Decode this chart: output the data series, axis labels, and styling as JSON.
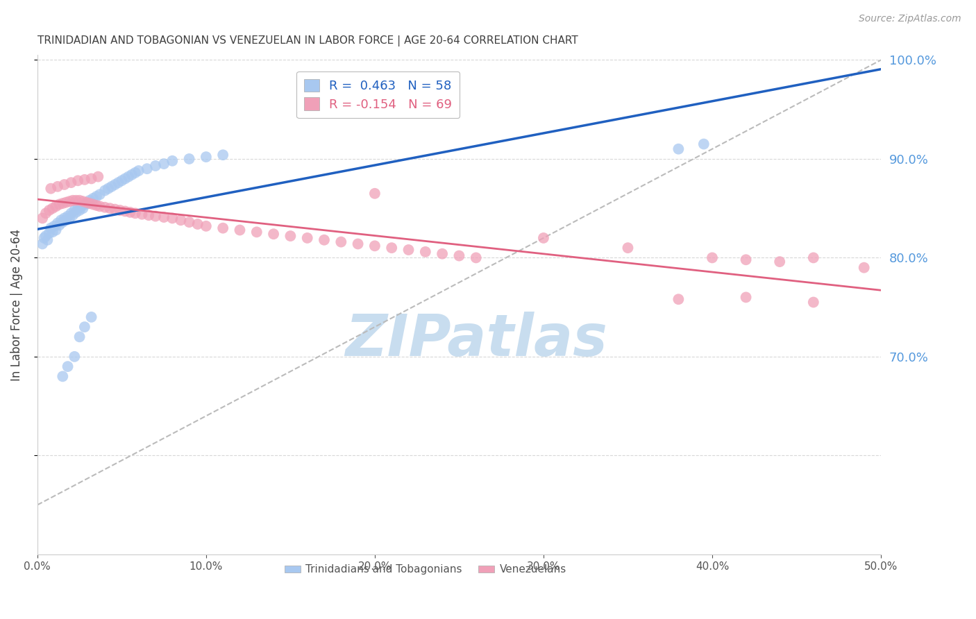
{
  "title": "TRINIDADIAN AND TOBAGONIAN VS VENEZUELAN IN LABOR FORCE | AGE 20-64 CORRELATION CHART",
  "source": "Source: ZipAtlas.com",
  "ylabel": "In Labor Force | Age 20-64",
  "xlim": [
    0.0,
    0.5
  ],
  "ylim": [
    0.5,
    1.005
  ],
  "xticks": [
    0.0,
    0.1,
    0.2,
    0.3,
    0.4,
    0.5
  ],
  "yticks_left": [
    0.6,
    0.7,
    0.8,
    0.9,
    1.0
  ],
  "yticks_right": [
    0.7,
    0.8,
    0.9,
    1.0
  ],
  "blue_R": 0.463,
  "blue_N": 58,
  "pink_R": -0.154,
  "pink_N": 69,
  "blue_color": "#A8C8F0",
  "pink_color": "#F0A0B8",
  "blue_line_color": "#2060C0",
  "pink_line_color": "#E06080",
  "grid_color": "#D8D8D8",
  "title_color": "#404040",
  "axis_label_color": "#404040",
  "right_axis_color": "#5599DD",
  "watermark_text": "ZIPatlas",
  "watermark_color": "#C8DDEF",
  "legend_labels": [
    "Trinidadians and Tobagonians",
    "Venezuelans"
  ],
  "figsize": [
    14.06,
    8.92
  ],
  "dpi": 100,
  "blue_scatter_x": [
    0.003,
    0.004,
    0.005,
    0.006,
    0.007,
    0.008,
    0.009,
    0.01,
    0.011,
    0.012,
    0.013,
    0.014,
    0.015,
    0.016,
    0.017,
    0.018,
    0.019,
    0.02,
    0.021,
    0.022,
    0.023,
    0.024,
    0.025,
    0.026,
    0.027,
    0.028,
    0.03,
    0.031,
    0.032,
    0.033,
    0.035,
    0.037,
    0.04,
    0.042,
    0.044,
    0.046,
    0.048,
    0.05,
    0.052,
    0.054,
    0.056,
    0.058,
    0.06,
    0.065,
    0.07,
    0.075,
    0.08,
    0.09,
    0.1,
    0.11,
    0.015,
    0.018,
    0.022,
    0.025,
    0.028,
    0.032,
    0.38,
    0.395
  ],
  "blue_scatter_y": [
    0.814,
    0.82,
    0.822,
    0.818,
    0.825,
    0.83,
    0.826,
    0.832,
    0.828,
    0.835,
    0.833,
    0.838,
    0.836,
    0.84,
    0.838,
    0.842,
    0.84,
    0.845,
    0.843,
    0.848,
    0.846,
    0.85,
    0.848,
    0.852,
    0.85,
    0.854,
    0.855,
    0.858,
    0.856,
    0.86,
    0.862,
    0.864,
    0.868,
    0.87,
    0.872,
    0.874,
    0.876,
    0.878,
    0.88,
    0.882,
    0.884,
    0.886,
    0.888,
    0.89,
    0.893,
    0.895,
    0.898,
    0.9,
    0.902,
    0.904,
    0.68,
    0.69,
    0.7,
    0.72,
    0.73,
    0.74,
    0.91,
    0.915
  ],
  "pink_scatter_x": [
    0.003,
    0.005,
    0.007,
    0.009,
    0.011,
    0.013,
    0.015,
    0.017,
    0.019,
    0.021,
    0.023,
    0.025,
    0.027,
    0.029,
    0.031,
    0.033,
    0.035,
    0.037,
    0.04,
    0.043,
    0.046,
    0.049,
    0.052,
    0.055,
    0.058,
    0.062,
    0.066,
    0.07,
    0.075,
    0.08,
    0.085,
    0.09,
    0.095,
    0.1,
    0.11,
    0.12,
    0.13,
    0.14,
    0.15,
    0.16,
    0.17,
    0.18,
    0.19,
    0.2,
    0.21,
    0.22,
    0.23,
    0.24,
    0.25,
    0.26,
    0.008,
    0.012,
    0.016,
    0.02,
    0.024,
    0.028,
    0.032,
    0.036,
    0.3,
    0.35,
    0.4,
    0.42,
    0.44,
    0.46,
    0.49,
    0.42,
    0.46,
    0.38,
    0.2
  ],
  "pink_scatter_y": [
    0.84,
    0.845,
    0.848,
    0.85,
    0.852,
    0.854,
    0.855,
    0.856,
    0.857,
    0.858,
    0.858,
    0.858,
    0.857,
    0.856,
    0.855,
    0.854,
    0.853,
    0.852,
    0.851,
    0.85,
    0.849,
    0.848,
    0.847,
    0.846,
    0.845,
    0.844,
    0.843,
    0.842,
    0.841,
    0.84,
    0.838,
    0.836,
    0.834,
    0.832,
    0.83,
    0.828,
    0.826,
    0.824,
    0.822,
    0.82,
    0.818,
    0.816,
    0.814,
    0.812,
    0.81,
    0.808,
    0.806,
    0.804,
    0.802,
    0.8,
    0.87,
    0.872,
    0.874,
    0.876,
    0.878,
    0.879,
    0.88,
    0.882,
    0.82,
    0.81,
    0.8,
    0.798,
    0.796,
    0.8,
    0.79,
    0.76,
    0.755,
    0.758,
    0.865
  ]
}
